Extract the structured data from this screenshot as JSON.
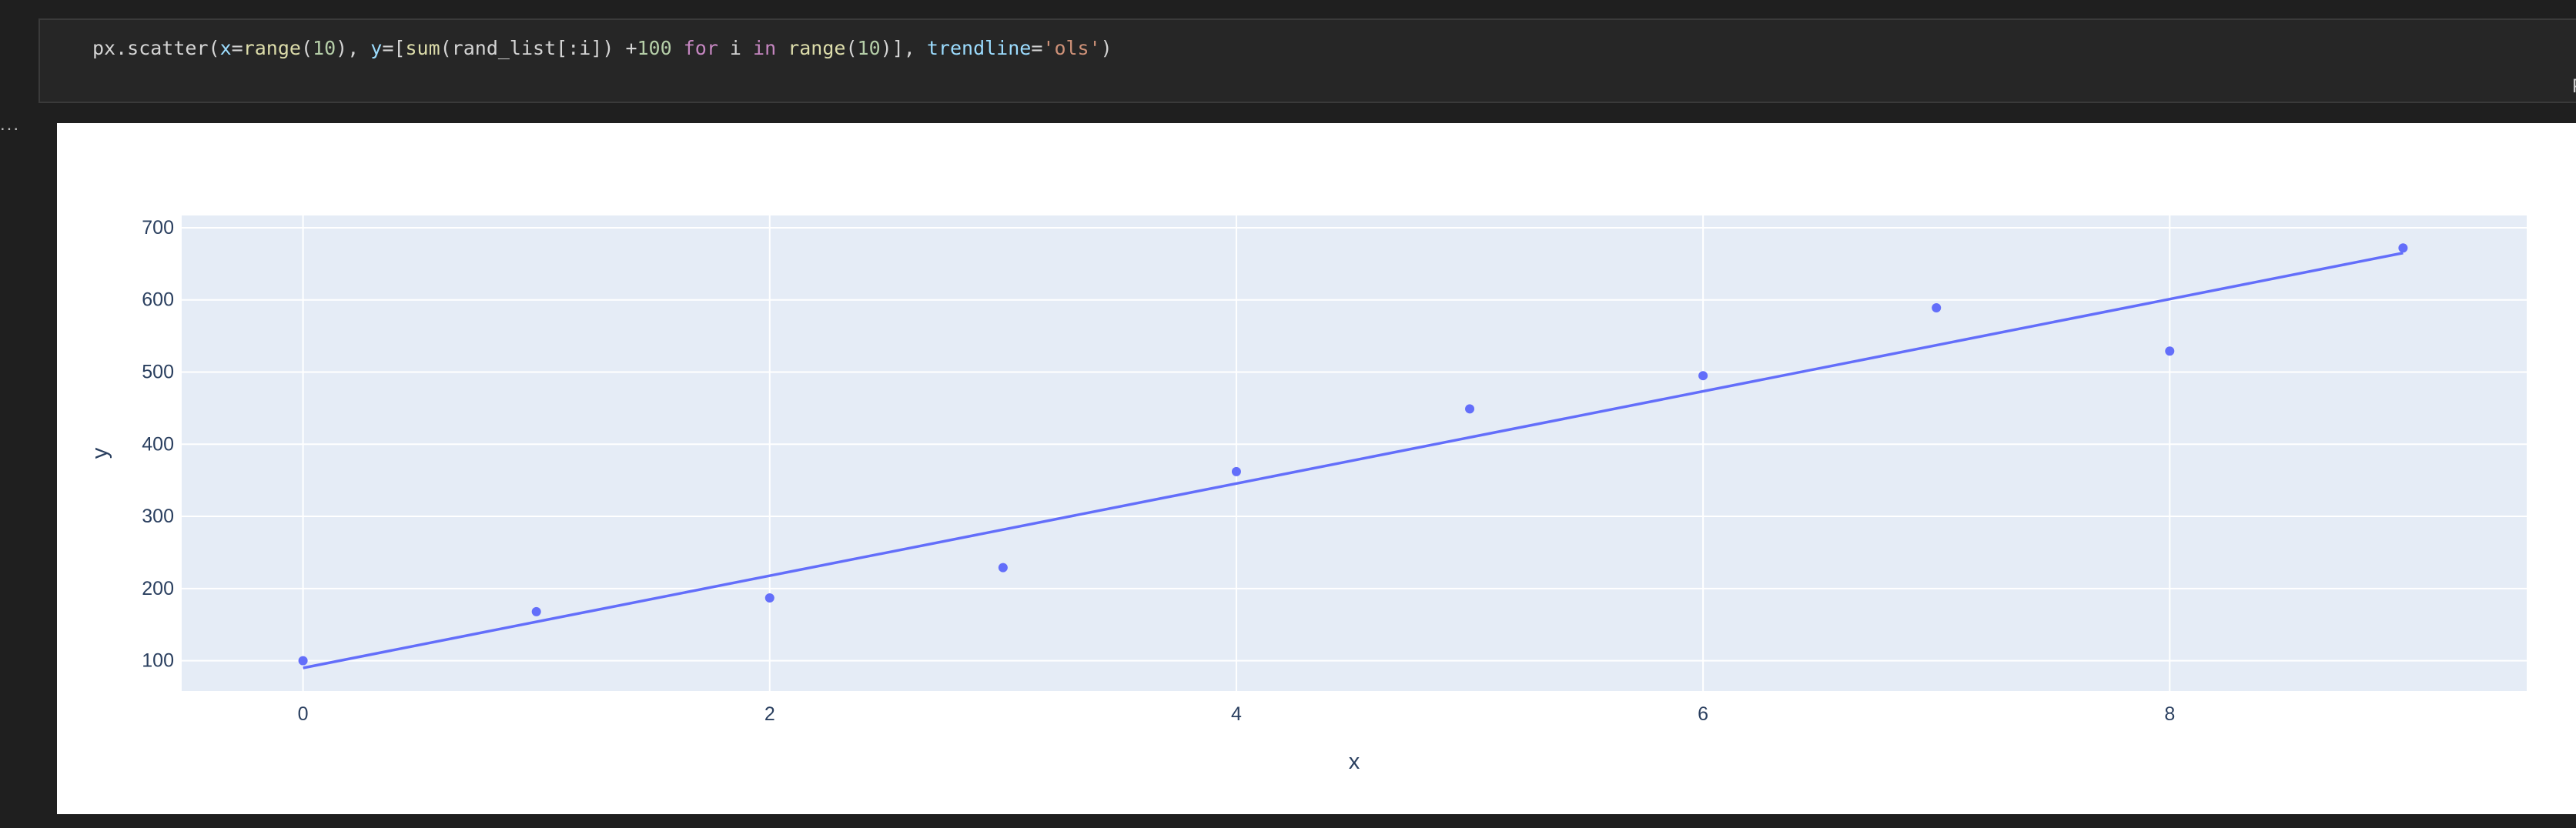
{
  "code": {
    "tokens": [
      {
        "text": "px.scatter(",
        "cls": "tok-plain"
      },
      {
        "text": "x",
        "cls": "tok-var"
      },
      {
        "text": "=",
        "cls": "tok-plain"
      },
      {
        "text": "range",
        "cls": "tok-fn"
      },
      {
        "text": "(",
        "cls": "tok-plain"
      },
      {
        "text": "10",
        "cls": "tok-num"
      },
      {
        "text": "), ",
        "cls": "tok-plain"
      },
      {
        "text": "y",
        "cls": "tok-var"
      },
      {
        "text": "=[",
        "cls": "tok-plain"
      },
      {
        "text": "sum",
        "cls": "tok-fn"
      },
      {
        "text": "(rand_list[:i]) +",
        "cls": "tok-plain"
      },
      {
        "text": "100",
        "cls": "tok-num"
      },
      {
        "text": " ",
        "cls": "tok-plain"
      },
      {
        "text": "for",
        "cls": "tok-kw"
      },
      {
        "text": " i ",
        "cls": "tok-plain"
      },
      {
        "text": "in",
        "cls": "tok-kw"
      },
      {
        "text": " ",
        "cls": "tok-plain"
      },
      {
        "text": "range",
        "cls": "tok-fn"
      },
      {
        "text": "(",
        "cls": "tok-plain"
      },
      {
        "text": "10",
        "cls": "tok-num"
      },
      {
        "text": ")], ",
        "cls": "tok-plain"
      },
      {
        "text": "trendline",
        "cls": "tok-var"
      },
      {
        "text": "=",
        "cls": "tok-plain"
      },
      {
        "text": "'ols'",
        "cls": "tok-str"
      },
      {
        "text": ")",
        "cls": "tok-plain"
      }
    ],
    "language_label": "Py"
  },
  "output": {
    "toggle_label": "..."
  },
  "colors": {
    "plot_bg": "#e5ecf6",
    "grid": "#ffffff",
    "marker": "#636efa",
    "trendline": "#636efa",
    "tick_text": "#2a3f5f"
  },
  "chart_data": {
    "type": "scatter",
    "x": [
      0,
      1,
      2,
      3,
      4,
      5,
      6,
      7,
      8,
      9
    ],
    "y": [
      100,
      168,
      187,
      229,
      362,
      449,
      495,
      589,
      529,
      672
    ],
    "trendline": {
      "type": "ols",
      "y_start": 90,
      "y_end": 665
    },
    "xlabel": "x",
    "ylabel": "y",
    "xlim": [
      -0.52,
      9.53
    ],
    "ylim": [
      58,
      717
    ],
    "x_ticks": [
      0,
      2,
      4,
      6,
      8
    ],
    "y_ticks": [
      100,
      200,
      300,
      400,
      500,
      600,
      700
    ],
    "grid": true,
    "legend": "none"
  }
}
